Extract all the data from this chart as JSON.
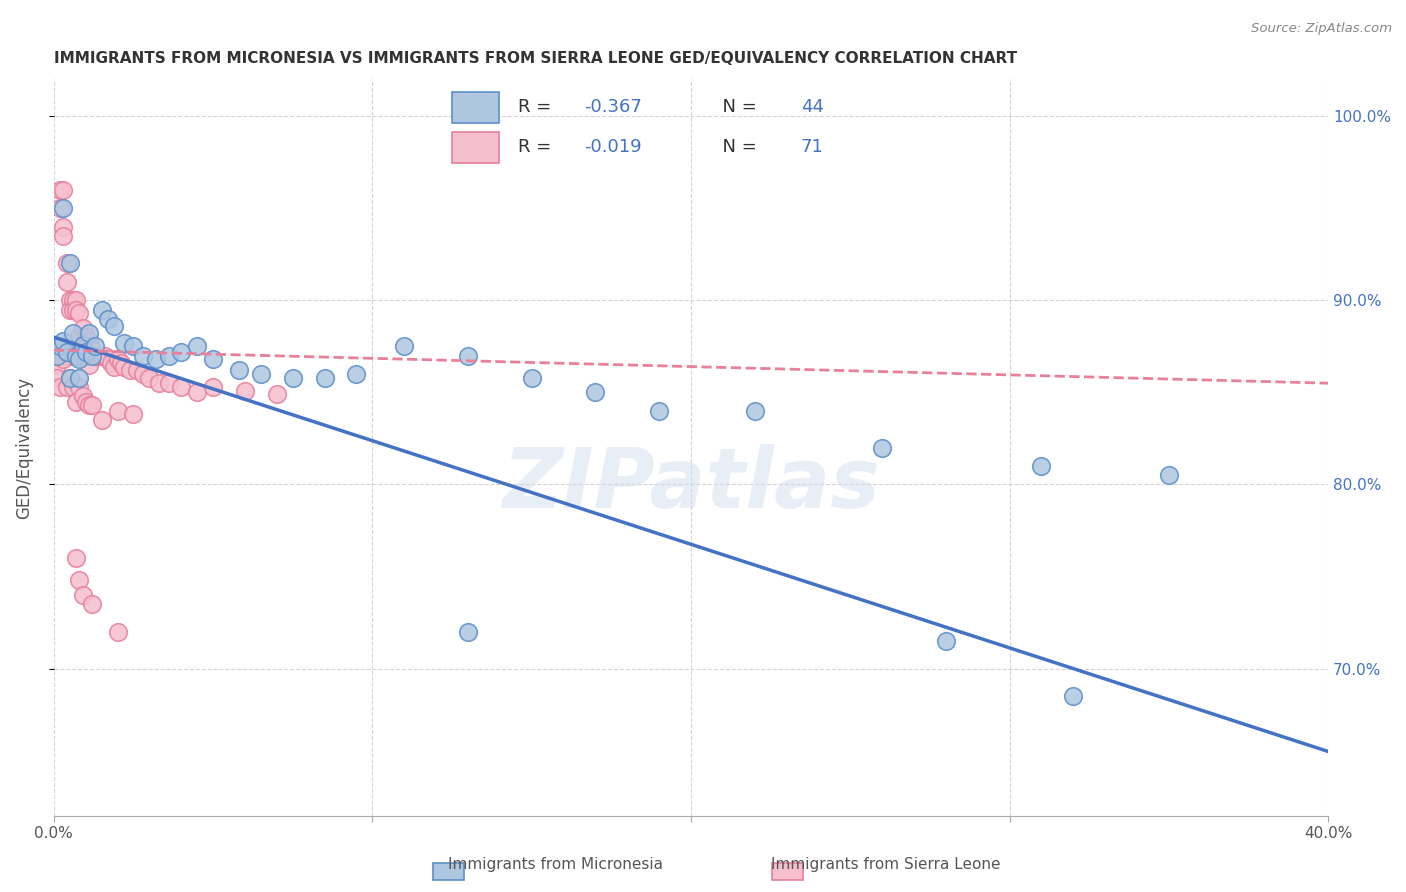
{
  "title": "IMMIGRANTS FROM MICRONESIA VS IMMIGRANTS FROM SIERRA LEONE GED/EQUIVALENCY CORRELATION CHART",
  "source": "Source: ZipAtlas.com",
  "ylabel": "GED/Equivalency",
  "x_min": 0.0,
  "x_max": 0.4,
  "y_min": 0.62,
  "y_max": 1.02,
  "y_ticks": [
    0.7,
    0.8,
    0.9,
    1.0
  ],
  "y_tick_labels": [
    "70.0%",
    "80.0%",
    "90.0%",
    "100.0%"
  ],
  "micronesia_color": "#aec6e0",
  "sierra_leone_color": "#f5bfcf",
  "micronesia_edge_color": "#5b8fc9",
  "sierra_leone_edge_color": "#e8809a",
  "micronesia_line_color": "#4472c4",
  "sierra_leone_line_color": "#e8809a",
  "micronesia_R": "-0.367",
  "micronesia_N": "44",
  "sierra_leone_R": "-0.019",
  "sierra_leone_N": "71",
  "legend_label_1": "Immigrants from Micronesia",
  "legend_label_2": "Immigrants from Sierra Leone",
  "watermark": "ZIPatlas",
  "grid_color": "#d0d0d0",
  "background_color": "#ffffff",
  "micronesia_line_x0": 0.0,
  "micronesia_line_y0": 0.88,
  "micronesia_line_x1": 0.4,
  "micronesia_line_y1": 0.655,
  "sierra_leone_line_x0": 0.0,
  "sierra_leone_line_y0": 0.873,
  "sierra_leone_line_x1": 0.4,
  "sierra_leone_line_y1": 0.855,
  "micronesia_x": [
    0.001,
    0.002,
    0.003,
    0.004,
    0.005,
    0.006,
    0.007,
    0.008,
    0.009,
    0.01,
    0.011,
    0.012,
    0.013,
    0.015,
    0.017,
    0.019,
    0.022,
    0.025,
    0.028,
    0.032,
    0.036,
    0.04,
    0.045,
    0.05,
    0.058,
    0.065,
    0.075,
    0.085,
    0.095,
    0.11,
    0.13,
    0.15,
    0.17,
    0.19,
    0.22,
    0.26,
    0.31,
    0.35,
    0.003,
    0.005,
    0.008,
    0.13,
    0.28,
    0.32
  ],
  "micronesia_y": [
    0.87,
    0.875,
    0.878,
    0.872,
    0.92,
    0.882,
    0.87,
    0.868,
    0.876,
    0.872,
    0.882,
    0.87,
    0.875,
    0.895,
    0.89,
    0.886,
    0.877,
    0.875,
    0.87,
    0.868,
    0.87,
    0.872,
    0.875,
    0.868,
    0.862,
    0.86,
    0.858,
    0.858,
    0.86,
    0.875,
    0.87,
    0.858,
    0.85,
    0.84,
    0.84,
    0.82,
    0.81,
    0.805,
    0.95,
    0.858,
    0.858,
    0.72,
    0.715,
    0.685
  ],
  "sierra_leone_x": [
    0.001,
    0.001,
    0.002,
    0.002,
    0.002,
    0.003,
    0.003,
    0.003,
    0.004,
    0.004,
    0.004,
    0.005,
    0.005,
    0.005,
    0.006,
    0.006,
    0.006,
    0.007,
    0.007,
    0.007,
    0.008,
    0.008,
    0.008,
    0.009,
    0.009,
    0.01,
    0.01,
    0.011,
    0.011,
    0.012,
    0.013,
    0.014,
    0.015,
    0.016,
    0.017,
    0.018,
    0.019,
    0.02,
    0.021,
    0.022,
    0.024,
    0.026,
    0.028,
    0.03,
    0.033,
    0.036,
    0.04,
    0.045,
    0.05,
    0.06,
    0.07,
    0.001,
    0.002,
    0.003,
    0.004,
    0.005,
    0.006,
    0.007,
    0.008,
    0.009,
    0.01,
    0.011,
    0.012,
    0.02,
    0.025,
    0.015,
    0.007,
    0.008,
    0.009,
    0.012,
    0.02
  ],
  "sierra_leone_y": [
    0.875,
    0.865,
    0.96,
    0.95,
    0.87,
    0.96,
    0.94,
    0.935,
    0.92,
    0.91,
    0.87,
    0.9,
    0.895,
    0.87,
    0.9,
    0.895,
    0.87,
    0.9,
    0.895,
    0.87,
    0.893,
    0.88,
    0.87,
    0.885,
    0.87,
    0.88,
    0.87,
    0.878,
    0.865,
    0.873,
    0.87,
    0.87,
    0.87,
    0.87,
    0.868,
    0.866,
    0.864,
    0.868,
    0.866,
    0.864,
    0.862,
    0.862,
    0.86,
    0.858,
    0.855,
    0.855,
    0.853,
    0.85,
    0.853,
    0.851,
    0.849,
    0.858,
    0.853,
    0.868,
    0.853,
    0.858,
    0.853,
    0.845,
    0.853,
    0.848,
    0.845,
    0.843,
    0.843,
    0.84,
    0.838,
    0.835,
    0.76,
    0.748,
    0.74,
    0.735,
    0.72
  ]
}
